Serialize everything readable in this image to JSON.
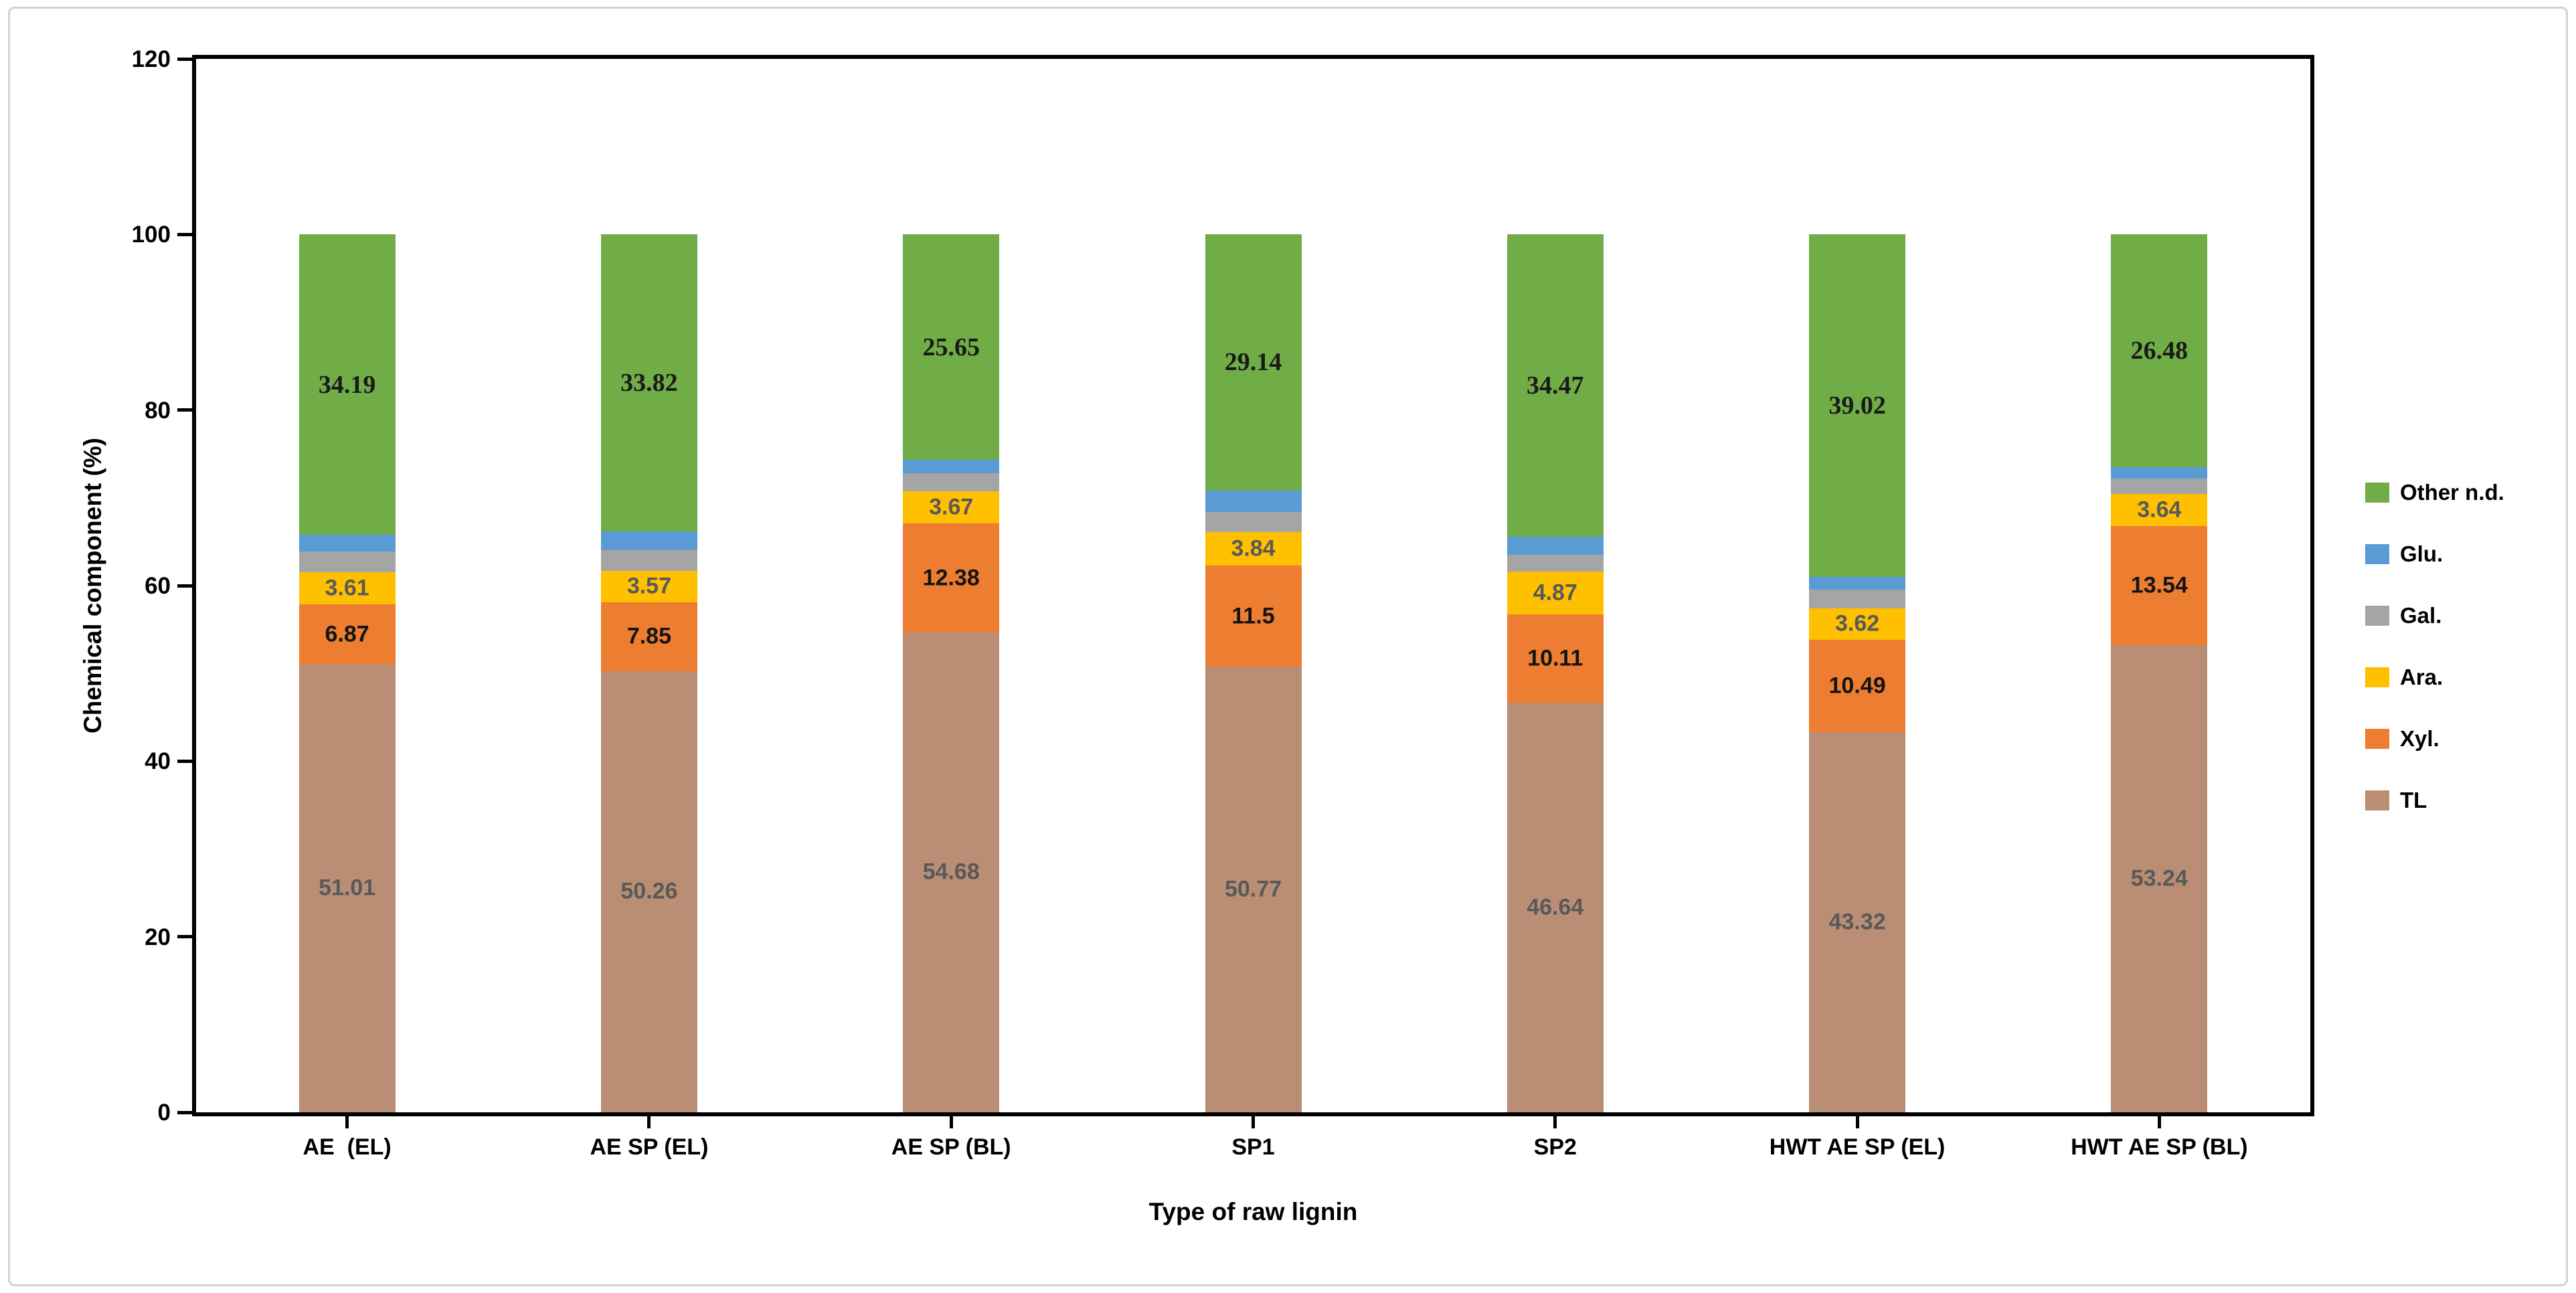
{
  "chart_data": {
    "type": "bar",
    "subtype": "stacked-percent-style",
    "title": "",
    "xlabel": "Type of raw lignin",
    "ylabel": "Chemical component (%)",
    "ylim": [
      0,
      120
    ],
    "yticks": [
      0,
      20,
      40,
      60,
      80,
      100,
      120
    ],
    "grid": false,
    "legend_position": "right",
    "categories": [
      "AE  (EL)",
      "AE SP (EL)",
      "AE SP (BL)",
      "SP1",
      "SP2",
      "HWT AE SP (EL)",
      "HWT AE SP (BL)"
    ],
    "series": [
      {
        "name": "TL",
        "color": "#BA8E75",
        "values": [
          51.01,
          50.26,
          54.68,
          50.77,
          46.64,
          43.32,
          53.24
        ],
        "labels": [
          "51.01",
          "50.26",
          "54.68",
          "50.77",
          "46.64",
          "43.32",
          "53.24"
        ],
        "label_color": "#595959",
        "label_style": "sans"
      },
      {
        "name": "Xyl.",
        "color": "#ED7D31",
        "values": [
          6.87,
          7.85,
          12.38,
          11.5,
          10.11,
          10.49,
          13.54
        ],
        "labels": [
          "6.87",
          "7.85",
          "12.38",
          "11.5",
          "10.11",
          "10.49",
          "13.54"
        ],
        "label_color": "#141414",
        "label_style": "sans"
      },
      {
        "name": "Ara.",
        "color": "#FFC000",
        "values": [
          3.61,
          3.57,
          3.67,
          3.84,
          4.87,
          3.62,
          3.64
        ],
        "labels": [
          "3.61",
          "3.57",
          "3.67",
          "3.84",
          "4.87",
          "3.62",
          "3.64"
        ],
        "label_color": "#595959",
        "label_style": "sans"
      },
      {
        "name": "Gal.",
        "color": "#A5A5A5",
        "values": [
          2.39,
          2.36,
          2.07,
          2.3,
          1.91,
          2.1,
          1.8
        ],
        "labels": null,
        "label_color": null,
        "label_style": null
      },
      {
        "name": "Glu.",
        "color": "#5B9BD5",
        "values": [
          1.93,
          2.14,
          1.55,
          2.45,
          2.0,
          1.45,
          1.3
        ],
        "labels": null,
        "label_color": null,
        "label_style": null
      },
      {
        "name": "Other n.d.",
        "color": "#70AD47",
        "values": [
          34.19,
          33.82,
          25.65,
          29.14,
          34.47,
          39.02,
          26.48
        ],
        "labels": [
          "34.19",
          "33.82",
          "25.65",
          "29.14",
          "34.47",
          "39.02",
          "26.48"
        ],
        "label_color": "#1a1a1a",
        "label_style": "serif"
      }
    ],
    "legend": [
      "Other n.d.",
      "Glu.",
      "Gal.",
      "Ara.",
      "Xyl.",
      "TL"
    ]
  }
}
